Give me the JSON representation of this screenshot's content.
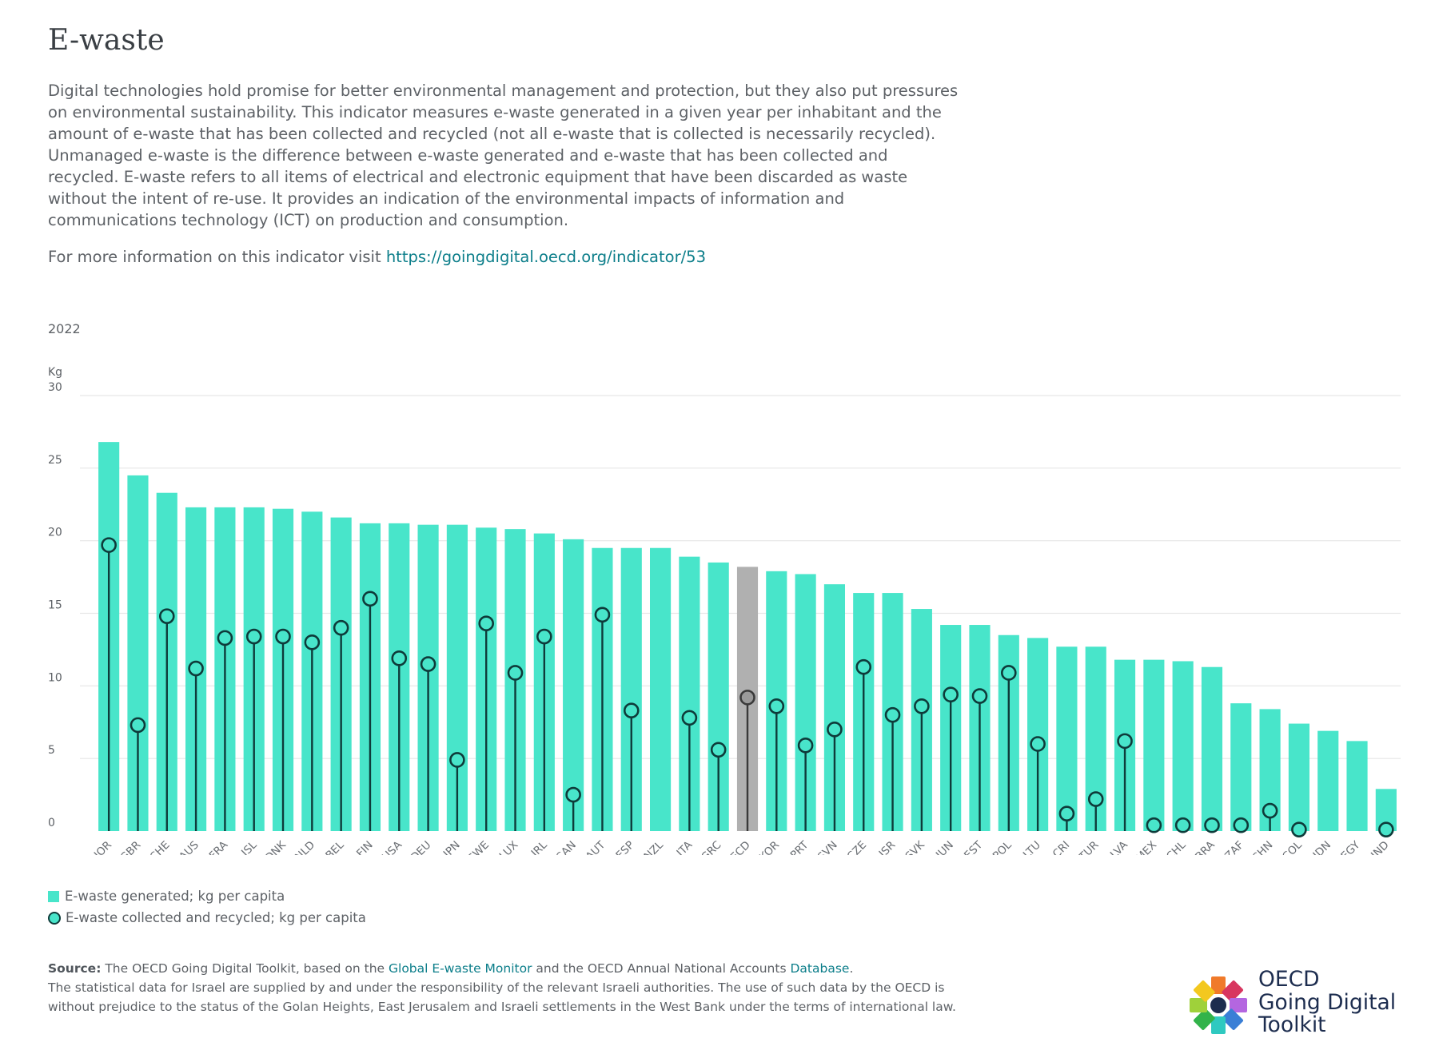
{
  "title": "E-waste",
  "intro": "Digital technologies hold promise for better environmental management and protection, but they also put pressures on environmental sustainability. This indicator measures e-waste generated in a given year per inhabitant and the amount of e-waste that has been collected and recycled (not all e-waste that is collected is necessarily recycled). Unmanaged e-waste is the difference between e-waste generated and e-waste that has been collected and recycled. E-waste refers to all items of electrical and electronic equipment that have been discarded as waste without the intent of re-use. It provides an indication of the environmental impacts of information and communications technology (ICT) on production and consumption.",
  "more_info": {
    "prefix": "For more information on this indicator visit",
    "link": "https://goingdigital.oecd.org/indicator/53"
  },
  "colors": {
    "bar": "#48e5ca",
    "bar_highlight": "#b0b0b0",
    "dot_stroke": "#0e3b3a",
    "dot_highlight": "#9a9a9a",
    "grid": "#e6e6e6",
    "link": "#0c7e8a"
  },
  "chart_data": {
    "type": "bar",
    "year_label": "2022",
    "ylabel": "Kg",
    "ylim": [
      0,
      30
    ],
    "yticks": [
      0,
      5,
      10,
      15,
      20,
      25,
      30
    ],
    "grid": true,
    "highlight": "OECD",
    "categories": [
      "NOR",
      "GBR",
      "CHE",
      "AUS",
      "FRA",
      "ISL",
      "DNK",
      "NLD",
      "BEL",
      "FIN",
      "USA",
      "DEU",
      "JPN",
      "SWE",
      "LUX",
      "IRL",
      "CAN",
      "AUT",
      "ESP",
      "NZL",
      "ITA",
      "GRC",
      "OECD",
      "KOR",
      "PRT",
      "SVN",
      "CZE",
      "ISR",
      "SVK",
      "HUN",
      "EST",
      "POL",
      "LTU",
      "CRI",
      "TUR",
      "LVA",
      "MEX",
      "CHL",
      "BRA",
      "ZAF",
      "CHN",
      "COL",
      "IDN",
      "EGY",
      "IND"
    ],
    "series": [
      {
        "name": "E-waste generated; kg per capita",
        "kind": "bar",
        "values": [
          26.8,
          24.5,
          23.3,
          22.3,
          22.3,
          22.3,
          22.2,
          22.0,
          21.6,
          21.2,
          21.2,
          21.1,
          21.1,
          20.9,
          20.8,
          20.5,
          20.1,
          19.5,
          19.5,
          19.5,
          18.9,
          18.5,
          18.2,
          17.9,
          17.7,
          17.0,
          16.4,
          16.4,
          15.3,
          14.2,
          14.2,
          13.5,
          13.3,
          12.7,
          12.7,
          11.8,
          11.8,
          11.7,
          11.3,
          8.8,
          8.4,
          7.4,
          6.9,
          6.2,
          2.9
        ]
      },
      {
        "name": "E-waste collected and recycled; kg per capita",
        "kind": "dot",
        "values": [
          19.7,
          7.3,
          14.8,
          11.2,
          13.3,
          13.4,
          13.4,
          13.0,
          14.0,
          16.0,
          11.9,
          11.5,
          4.9,
          14.3,
          10.9,
          13.4,
          2.5,
          14.9,
          8.3,
          null,
          7.8,
          5.6,
          9.2,
          8.6,
          5.9,
          7.0,
          11.3,
          8.0,
          8.6,
          9.4,
          9.3,
          10.9,
          6.0,
          1.2,
          2.2,
          6.2,
          0.4,
          0.4,
          0.4,
          0.4,
          1.4,
          0.1,
          null,
          null,
          0.1
        ]
      }
    ]
  },
  "legend": {
    "generated": "E-waste generated; kg per capita",
    "collected": "E-waste collected and recycled; kg per capita"
  },
  "source": {
    "label": "Source:",
    "text1": "The OECD Going Digital Toolkit, based on the",
    "link1": "Global E-waste Monitor",
    "text2": "and the OECD Annual National Accounts",
    "link2": "Database",
    "text3": ".",
    "note": "The statistical data for Israel are supplied by and under the responsibility of the relevant Israeli authorities. The use of such data by the OECD is without prejudice to the status of the Golan Heights, East Jerusalem and Israeli settlements in the West Bank under the terms of international law."
  },
  "logo": {
    "line1": "OECD",
    "line2": "Going Digital",
    "line3": "Toolkit"
  }
}
